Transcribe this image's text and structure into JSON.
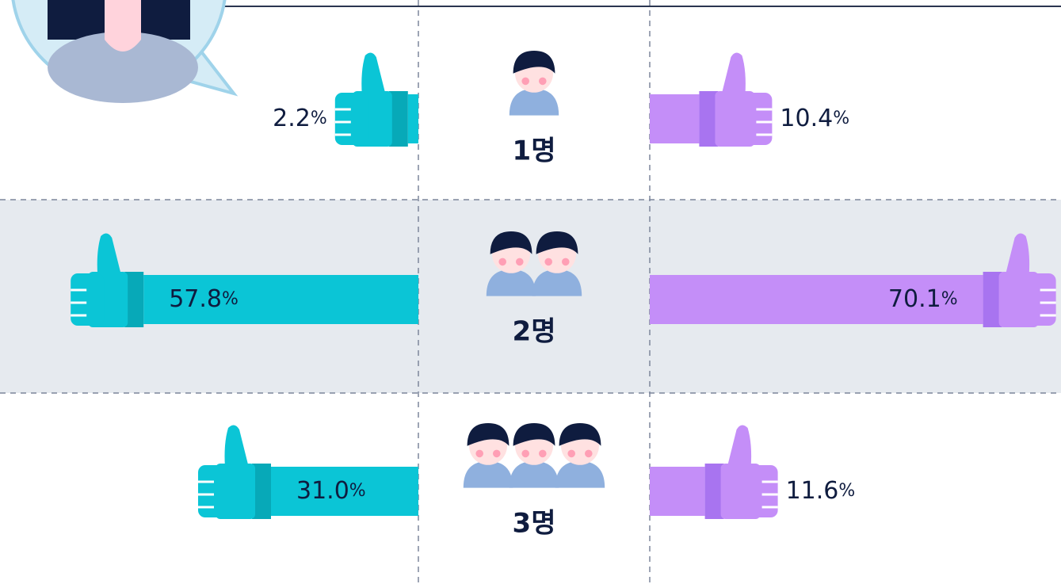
{
  "chart_data": {
    "type": "butterfly",
    "categories": [
      "1명",
      "2명",
      "3명"
    ],
    "series": [
      {
        "color": "#0bc5d6",
        "values": [
          2.2,
          57.8,
          31.0
        ],
        "value_labels": [
          "2.2%",
          "57.8%",
          "31.0%"
        ]
      },
      {
        "color": "#c48ef8",
        "values": [
          10.4,
          70.1,
          11.6
        ],
        "value_labels": [
          "10.4%",
          "70.1%",
          "11.6%"
        ]
      }
    ]
  }
}
